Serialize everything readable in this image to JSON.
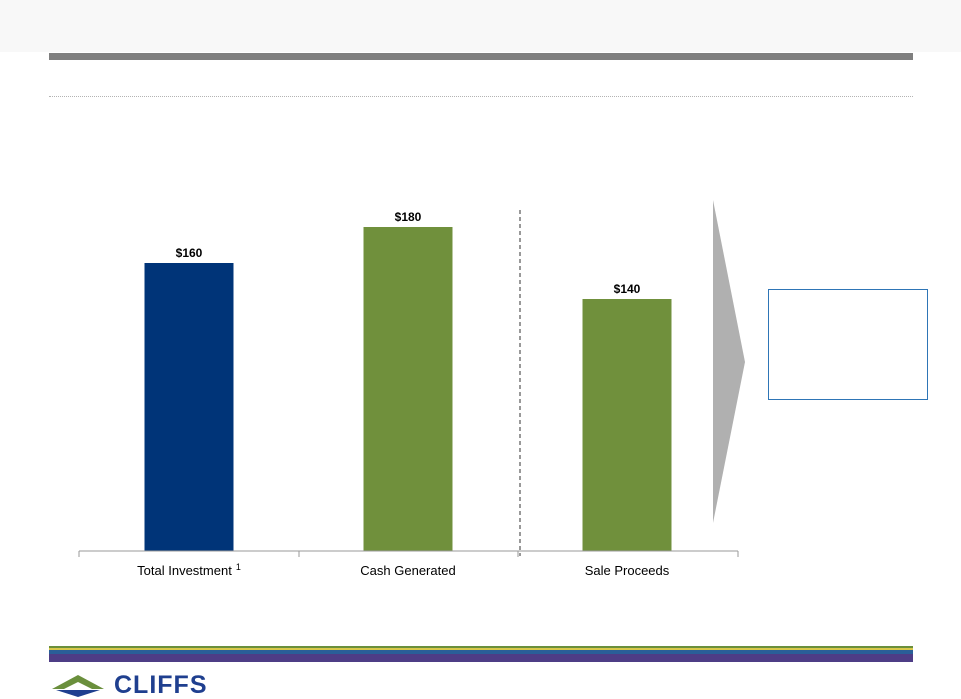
{
  "colors": {
    "investment": "#003478",
    "cash": "#70903c",
    "title_rule": "#7f7f7f",
    "arrow": "#b0b0b0",
    "callout_border": "#2e75b6",
    "footer_green": "#6a8f3c",
    "footer_yellow": "#d8c84a",
    "footer_blue": "#2a5f98",
    "footer_purple": "#4e3d86",
    "logo_blue": "#1f3f8f"
  },
  "chart_data": {
    "type": "bar",
    "categories": [
      "Total Investment",
      "Cash Generated",
      "Sale Proceeds"
    ],
    "category_superscripts": [
      "1",
      "",
      ""
    ],
    "values": [
      160,
      180,
      140
    ],
    "data_labels": [
      "$160",
      "$180",
      "$140"
    ],
    "bar_colors": [
      "#003478",
      "#70903c",
      "#70903c"
    ],
    "ylim": [
      0,
      200
    ],
    "grid": false,
    "separator_after_category": 1
  },
  "logo": {
    "text": "CLIFFS"
  }
}
